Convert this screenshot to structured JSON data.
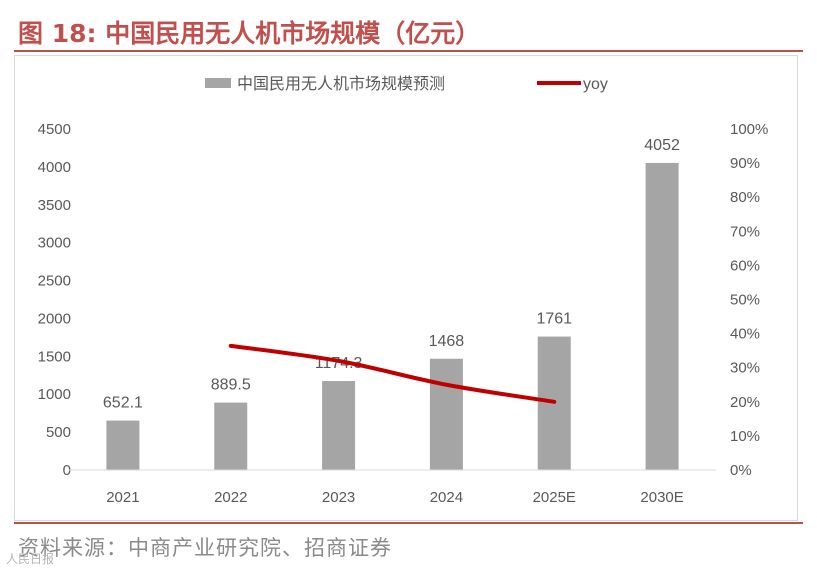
{
  "figure": {
    "title": "图 18:  中国民用无人机市场规模（亿元）",
    "source": "资料来源：中商产业研究院、招商证券",
    "corner_mark": "人民日报"
  },
  "chart_data": {
    "type": "bar",
    "categories": [
      "2021",
      "2022",
      "2023",
      "2024",
      "2025E",
      "2030E"
    ],
    "series": [
      {
        "name": "中国民用无人机市场规模预测",
        "type": "bar",
        "axis": "left",
        "values": [
          652.1,
          889.5,
          1174.3,
          1468,
          1761,
          4052
        ],
        "data_labels": [
          "652.1",
          "889.5",
          "1174.3",
          "1468",
          "1761",
          "4052"
        ]
      },
      {
        "name": "yoy",
        "type": "line",
        "axis": "right",
        "values": [
          null,
          0.364,
          0.32,
          0.25,
          0.2,
          null
        ]
      }
    ],
    "y_left": {
      "min": 0,
      "max": 4500,
      "ticks": [
        0,
        500,
        1000,
        1500,
        2000,
        2500,
        3000,
        3500,
        4000,
        4500
      ]
    },
    "y_right": {
      "min": 0,
      "max": 1,
      "ticks": [
        "0%",
        "10%",
        "20%",
        "30%",
        "40%",
        "50%",
        "60%",
        "70%",
        "80%",
        "90%",
        "100%"
      ]
    },
    "legend_position": "top",
    "grid": false,
    "colors": {
      "bar": "#a5a5a5",
      "line": "#c00000",
      "text": "#595959",
      "axis": "#d9d9d9"
    }
  }
}
